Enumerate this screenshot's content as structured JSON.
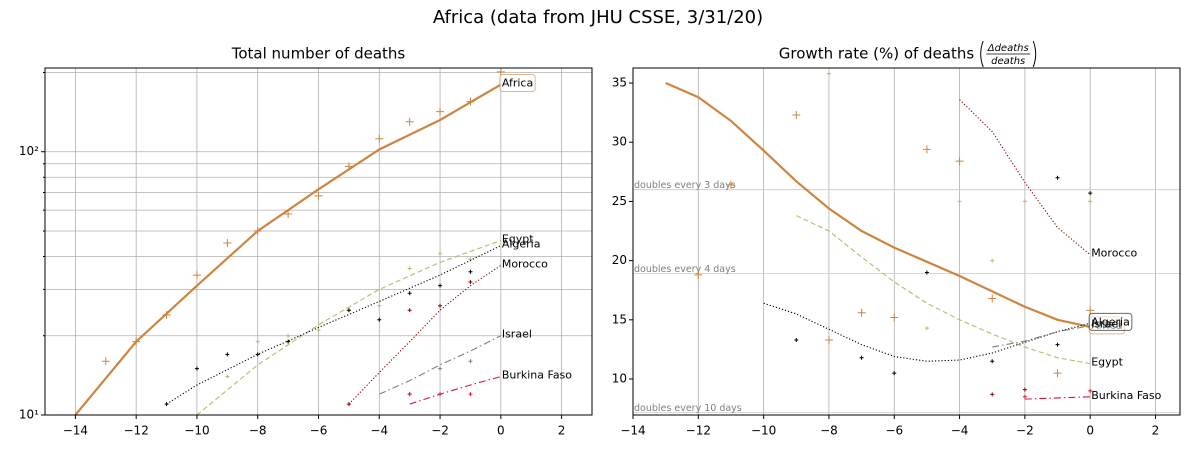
{
  "title": "Africa (data from JHU CSSE, 3/31/20)",
  "chart_data": [
    {
      "type": "line",
      "title": "Total number of deaths",
      "log_scale": true,
      "grid": "both",
      "xlim": [
        -15,
        3
      ],
      "xticks": [
        {
          "value": -14,
          "label": "−14"
        },
        {
          "value": -12,
          "label": "−12"
        },
        {
          "value": -10,
          "label": "−10"
        },
        {
          "value": -8,
          "label": "−8"
        },
        {
          "value": -6,
          "label": "−6"
        },
        {
          "value": -4,
          "label": "−4"
        },
        {
          "value": -2,
          "label": "−2"
        },
        0,
        2
      ],
      "ylim": [
        10,
        208
      ],
      "yticks": [
        {
          "value": 10,
          "label": "10¹"
        },
        {
          "value": 100,
          "label": "10²"
        }
      ],
      "yminorticks": [
        20,
        30,
        40,
        50,
        60,
        70,
        80,
        90,
        200
      ],
      "series": [
        {
          "name": "Africa",
          "color": "#cd853f",
          "linestyle": "solid",
          "linewidth": 2,
          "marker_size": 4,
          "label_box": true,
          "x": [
            -14,
            -12,
            -10,
            -8,
            -6,
            -4,
            -2,
            0
          ],
          "values": [
            10,
            19,
            31,
            50,
            72,
            102,
            132,
            180
          ],
          "points_x": [
            -13,
            -12,
            -11,
            -10,
            -9,
            -8,
            -7,
            -6,
            -5,
            -4,
            -3,
            -2,
            -1,
            0
          ],
          "points": [
            16,
            19,
            24,
            34,
            45,
            50,
            58,
            68,
            88,
            112,
            130,
            142,
            155,
            201
          ]
        },
        {
          "name": "Egypt",
          "color": "#bdb76b",
          "linestyle": "dashed",
          "linewidth": 1,
          "marker_size": 2,
          "x": [
            -10,
            -8,
            -6,
            -4,
            -2,
            0
          ],
          "values": [
            10,
            15.5,
            22,
            30,
            38,
            46
          ],
          "points_x": [
            -9,
            -8,
            -7,
            -6,
            -5,
            -4,
            -3,
            -2,
            -1
          ],
          "points": [
            14,
            19,
            20,
            21,
            25,
            26,
            36,
            41,
            39
          ]
        },
        {
          "name": "Algeria",
          "color": "#000000",
          "linestyle": "dotted",
          "linewidth": 1,
          "marker_size": 2,
          "x": [
            -11,
            -10,
            -8,
            -6,
            -4,
            -2,
            0
          ],
          "values": [
            11,
            13,
            17,
            21.5,
            27,
            34,
            44
          ],
          "points_x": [
            -11,
            -10,
            -9,
            -8,
            -7,
            -5,
            -4,
            -3,
            -2,
            -1
          ],
          "points": [
            11,
            15,
            17,
            17,
            19,
            25,
            23,
            29,
            31,
            35
          ]
        },
        {
          "name": "Morocco",
          "color": "#8b0000",
          "linestyle": "dotted",
          "linewidth": 1,
          "marker_size": 2,
          "x": [
            -5,
            -4,
            -3,
            -2,
            -1,
            0
          ],
          "values": [
            11,
            14.5,
            19,
            25,
            31,
            37
          ],
          "points_x": [
            -5,
            -3,
            -2,
            -1
          ],
          "points": [
            11,
            25,
            26,
            32
          ]
        },
        {
          "name": "Israel",
          "color": "#808080",
          "linestyle": "dashdot",
          "linewidth": 1,
          "marker_size": 2,
          "x": [
            -4,
            -3,
            -2,
            -1,
            0
          ],
          "values": [
            12,
            13.5,
            15.5,
            17.5,
            20
          ],
          "points_x": [
            -3,
            -2,
            -1
          ],
          "points": [
            12,
            15,
            16
          ]
        },
        {
          "name": "Burkina Faso",
          "color": "#dc143c",
          "linestyle": "dashdot",
          "linewidth": 1,
          "marker_size": 2,
          "x": [
            -3,
            -2,
            -1,
            0
          ],
          "values": [
            11,
            12,
            13,
            14
          ],
          "points_x": [
            -3,
            -2,
            -1
          ],
          "points": [
            12,
            12,
            12
          ]
        }
      ]
    },
    {
      "type": "line",
      "title": "Growth rate (%) of deaths",
      "title_numerator": "Δdeaths",
      "title_denominator": "deaths",
      "log_scale": false,
      "grid": "x",
      "xlim": [
        -14,
        2.75
      ],
      "xticks": [
        {
          "value": -14,
          "label": "−14"
        },
        {
          "value": -12,
          "label": "−12"
        },
        {
          "value": -10,
          "label": "−10"
        },
        {
          "value": -8,
          "label": "−8"
        },
        {
          "value": -6,
          "label": "−6"
        },
        {
          "value": -4,
          "label": "−4"
        },
        {
          "value": -2,
          "label": "−2"
        },
        0,
        2
      ],
      "ylim": [
        6.96,
        36.27
      ],
      "yticks": [
        10,
        15,
        20,
        25,
        30,
        35
      ],
      "hlines": [
        {
          "value": 25.99,
          "label": "doubles every 3 days"
        },
        {
          "value": 18.92,
          "label": "doubles every 4 days"
        },
        {
          "value": 7.18,
          "label": "doubles every 10 days"
        }
      ],
      "series": [
        {
          "name": "Africa",
          "color": "#cd853f",
          "linestyle": "solid",
          "linewidth": 2,
          "marker_size": 4,
          "label_box": true,
          "x": [
            -13,
            -12,
            -11,
            -10,
            -9,
            -8,
            -7,
            -6,
            -5,
            -4,
            -3,
            -2,
            -1,
            0
          ],
          "values": [
            35,
            33.8,
            31.8,
            29.3,
            26.7,
            24.4,
            22.5,
            21.1,
            19.9,
            18.7,
            17.4,
            16.1,
            15.0,
            14.4
          ],
          "points_x": [
            -12,
            -11,
            -9,
            -8,
            -7,
            -6,
            -5,
            -4,
            -3,
            -1,
            0
          ],
          "points": [
            18.8,
            26.4,
            32.3,
            13.3,
            15.6,
            15.2,
            29.4,
            28.4,
            16.8,
            10.5,
            15.8
          ]
        },
        {
          "name": "Egypt",
          "color": "#bdb76b",
          "linestyle": "dashed",
          "linewidth": 1,
          "marker_size": 2,
          "x": [
            -9,
            -8,
            -7,
            -6,
            -5,
            -4,
            -3,
            -2,
            -1,
            0
          ],
          "values": [
            23.8,
            22.5,
            20.3,
            18.2,
            16.4,
            15,
            13.8,
            12.7,
            11.8,
            11.3
          ],
          "points_x": [
            -8,
            -5,
            -4,
            -3,
            -2,
            0
          ],
          "points": [
            35.8,
            14.3,
            25,
            20,
            25,
            25
          ]
        },
        {
          "name": "Algeria",
          "color": "#000000",
          "linestyle": "dotted",
          "linewidth": 1,
          "marker_size": 2,
          "label_box": true,
          "x": [
            -10,
            -9,
            -8,
            -7,
            -6,
            -5,
            -4,
            -3,
            -2,
            -1,
            0
          ],
          "values": [
            16.4,
            15.5,
            14.2,
            12.9,
            11.9,
            11.5,
            11.6,
            12.2,
            13.1,
            14,
            14.7
          ],
          "points_x": [
            -9,
            -7,
            -6,
            -5,
            -3,
            -1,
            -1,
            0
          ],
          "points": [
            13.3,
            11.8,
            10.5,
            19,
            11.5,
            27,
            12.9,
            25.7
          ]
        },
        {
          "name": "Morocco",
          "color": "#8b0000",
          "linestyle": "dotted",
          "linewidth": 1,
          "marker_size": 2,
          "x": [
            -4,
            -3,
            -2,
            -1,
            0
          ],
          "values": [
            33.6,
            30.9,
            26.6,
            22.8,
            20.5
          ],
          "points_x": [
            -3,
            -2
          ],
          "points": [
            8.7,
            9.1
          ]
        },
        {
          "name": "Israel",
          "color": "#808080",
          "linestyle": "dashdot",
          "linewidth": 1,
          "marker_size": 2,
          "x": [
            -3,
            -2,
            -1,
            0
          ],
          "values": [
            12.7,
            13.2,
            14,
            14.5
          ],
          "points_x": [],
          "points": []
        },
        {
          "name": "Burkina Faso",
          "color": "#dc143c",
          "linestyle": "dashdot",
          "linewidth": 1,
          "marker_size": 2,
          "x": [
            -2,
            -1,
            0
          ],
          "values": [
            8.3,
            8.4,
            8.5
          ],
          "points_x": [
            -2,
            0
          ],
          "points": [
            8.5,
            9
          ]
        }
      ]
    }
  ]
}
